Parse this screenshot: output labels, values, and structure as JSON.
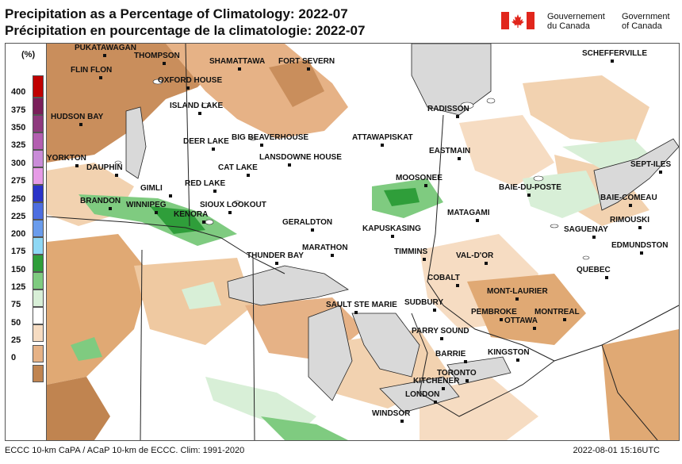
{
  "title_en": "Precipitation as a Percentage of Climatology: 2022-07",
  "title_fr": "Précipitation en pourcentage de la climatologie: 2022-07",
  "govt_fr": [
    "Gouvernement",
    "du Canada"
  ],
  "govt_en": [
    "Government",
    "of Canada"
  ],
  "legend": {
    "unit": "(%)",
    "labels": [
      "400",
      "375",
      "350",
      "325",
      "300",
      "275",
      "250",
      "225",
      "200",
      "175",
      "150",
      "125",
      "75",
      "50",
      "25",
      "0"
    ],
    "bins": [
      {
        "color": "#c00000"
      },
      {
        "color": "#7a1f5a"
      },
      {
        "color": "#8e3a7e"
      },
      {
        "color": "#b35fb0"
      },
      {
        "color": "#c98cd8"
      },
      {
        "color": "#e69be6"
      },
      {
        "color": "#2a33c8"
      },
      {
        "color": "#4d6ee0"
      },
      {
        "color": "#6a9cec"
      },
      {
        "color": "#8ed8f5"
      },
      {
        "color": "#2f9e3a"
      },
      {
        "color": "#7fcb80"
      },
      {
        "color": "#d8efd7"
      },
      {
        "color": "#ffffff"
      },
      {
        "color": "#f6dcc2"
      },
      {
        "color": "#e6b286"
      },
      {
        "color": "#c08450"
      }
    ]
  },
  "cities": [
    {
      "name": "PUKATAWAGAN"
    },
    {
      "name": "THOMPSON"
    },
    {
      "name": "FLIN FLON"
    },
    {
      "name": "SHAMATTAWA"
    },
    {
      "name": "FORT SEVERN"
    },
    {
      "name": "OXFORD HOUSE"
    },
    {
      "name": "ISLAND LAKE"
    },
    {
      "name": "HUDSON BAY"
    },
    {
      "name": "DEER LAKE"
    },
    {
      "name": "BIG BEAVERHOUSE"
    },
    {
      "name": "ATTAWAPISKAT"
    },
    {
      "name": "LANSDOWNE HOUSE"
    },
    {
      "name": "YORKTON"
    },
    {
      "name": "DAUPHIN"
    },
    {
      "name": "CAT LAKE"
    },
    {
      "name": "RED LAKE"
    },
    {
      "name": "GIMLI"
    },
    {
      "name": "BRANDON"
    },
    {
      "name": "WINNIPEG"
    },
    {
      "name": "SIOUX LOOKOUT"
    },
    {
      "name": "KENORA"
    },
    {
      "name": "GERALDTON"
    },
    {
      "name": "KAPUSKASING"
    },
    {
      "name": "MOOSONEE"
    },
    {
      "name": "THUNDER BAY"
    },
    {
      "name": "MARATHON"
    },
    {
      "name": "TIMMINS"
    },
    {
      "name": "RADISSON"
    },
    {
      "name": "EASTMAIN"
    },
    {
      "name": "SCHEFFERVILLE"
    },
    {
      "name": "SEPT-ILES"
    },
    {
      "name": "BAIE-DU-POSTE"
    },
    {
      "name": "BAIE-COMEAU"
    },
    {
      "name": "MATAGAMI"
    },
    {
      "name": "RIMOUSKI"
    },
    {
      "name": "SAGUENAY"
    },
    {
      "name": "EDMUNDSTON"
    },
    {
      "name": "VAL-D'OR"
    },
    {
      "name": "QUEBEC"
    },
    {
      "name": "COBALT"
    },
    {
      "name": "MONT-LAURIER"
    },
    {
      "name": "SAULT STE MARIE"
    },
    {
      "name": "SUDBURY"
    },
    {
      "name": "PEMBROKE"
    },
    {
      "name": "OTTAWA"
    },
    {
      "name": "MONTREAL"
    },
    {
      "name": "PARRY SOUND"
    },
    {
      "name": "BARRIE"
    },
    {
      "name": "KINGSTON"
    },
    {
      "name": "TORONTO"
    },
    {
      "name": "KITCHENER"
    },
    {
      "name": "LONDON"
    },
    {
      "name": "WINDSOR"
    }
  ],
  "footer_left": "ECCC 10-km CaPA / ACaP 10-km de ECCC. Clim: 1991-2020",
  "footer_right": "2022-08-01 15:16UTC"
}
